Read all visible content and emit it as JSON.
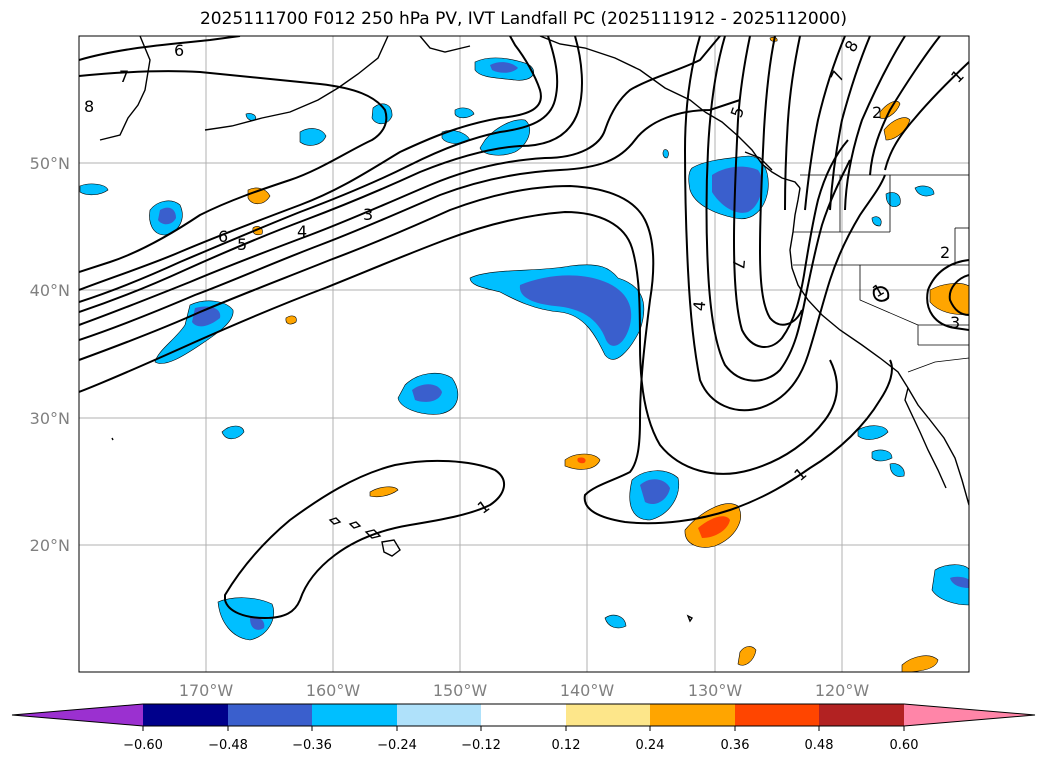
{
  "title": "2025111700 F012 250 hPa PV, IVT Landfall PC (2025111912 - 2025112000)",
  "lon_labels": [
    "170°W",
    "160°W",
    "150°W",
    "140°W",
    "130°W",
    "120°W"
  ],
  "lat_labels": [
    "50°N",
    "40°N",
    "30°N",
    "20°N"
  ],
  "contour_labels": [
    "6",
    "7",
    "8",
    "6",
    "5",
    "4",
    "3",
    "1",
    "1",
    "4",
    "7",
    "5",
    "8",
    "7",
    "1",
    "2",
    "2",
    "1",
    "3"
  ],
  "colorbar": {
    "tick_labels": [
      "−0.60",
      "−0.48",
      "−0.36",
      "−0.24",
      "−0.12",
      "0.12",
      "0.24",
      "0.36",
      "0.48",
      "0.60"
    ],
    "colors": [
      "#9b30d0",
      "#00008b",
      "#3a5fcd",
      "#00bfff",
      "#afe1fa",
      "#ffffff",
      "#fde68a",
      "#ffa500",
      "#ff4500",
      "#b22222",
      "#ff85a8"
    ]
  },
  "fill_colors": {
    "neg_light": "#00bfff",
    "neg_dark": "#3a5fcd",
    "pos_light": "#ffa500",
    "pos_dark": "#ff4500"
  }
}
